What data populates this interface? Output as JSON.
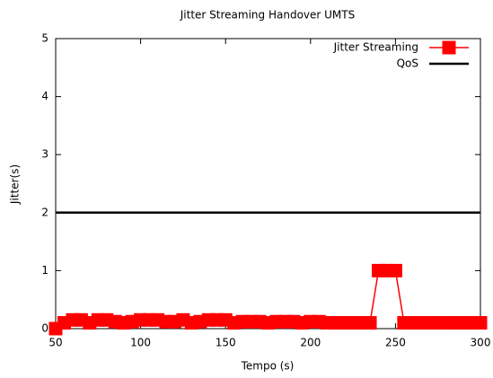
{
  "chart_data": {
    "type": "line",
    "title": "Jitter Streaming Handover UMTS",
    "xlabel": "Tempo (s)",
    "ylabel": "Jitter(s)",
    "xlim": [
      50,
      300
    ],
    "xticks": [
      50,
      100,
      150,
      200,
      250,
      300
    ],
    "ylim": [
      0,
      5
    ],
    "yticks": [
      0,
      1,
      2,
      3,
      4,
      5
    ],
    "legend": "upper right",
    "series": [
      {
        "name": "Jitter Streaming",
        "color": "#ff0000",
        "marker": "square",
        "x": [
          50,
          55,
          60,
          65,
          70,
          75,
          80,
          85,
          90,
          95,
          100,
          105,
          110,
          115,
          120,
          125,
          130,
          135,
          140,
          145,
          150,
          155,
          160,
          165,
          170,
          175,
          180,
          185,
          190,
          195,
          200,
          205,
          210,
          215,
          220,
          225,
          230,
          235,
          240,
          245,
          250,
          255,
          260,
          265,
          270,
          275,
          280,
          285,
          290,
          295,
          300
        ],
        "values": [
          0,
          0.1,
          0.15,
          0.15,
          0.1,
          0.15,
          0.15,
          0.12,
          0.1,
          0.12,
          0.15,
          0.15,
          0.15,
          0.12,
          0.12,
          0.15,
          0.1,
          0.12,
          0.15,
          0.15,
          0.15,
          0.1,
          0.12,
          0.12,
          0.12,
          0.1,
          0.12,
          0.12,
          0.12,
          0.1,
          0.12,
          0.12,
          0.1,
          0.1,
          0.1,
          0.1,
          0.1,
          0.1,
          1,
          1,
          1,
          0.1,
          0.1,
          0.1,
          0.1,
          0.1,
          0.1,
          0.1,
          0.1,
          0.1,
          0.1
        ]
      },
      {
        "name": "QoS",
        "color": "#000000",
        "x": [
          50,
          300
        ],
        "values": [
          2,
          2
        ]
      }
    ]
  }
}
